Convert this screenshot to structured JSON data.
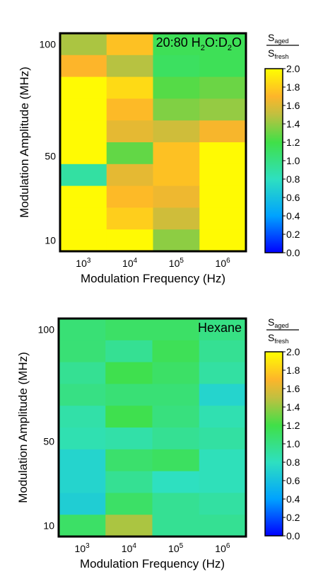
{
  "colormap": {
    "stops": [
      {
        "v": 0.0,
        "color": "#0000ff"
      },
      {
        "v": 0.4,
        "color": "#00a2ff"
      },
      {
        "v": 0.8,
        "color": "#2ee0c0"
      },
      {
        "v": 1.2,
        "color": "#40e048"
      },
      {
        "v": 1.5,
        "color": "#c0c040"
      },
      {
        "v": 1.7,
        "color": "#fdb52a"
      },
      {
        "v": 2.0,
        "color": "#ffff00"
      }
    ]
  },
  "chart_data": [
    {
      "type": "heatmap",
      "annotation": "20:80 H₂O:D₂O",
      "annotation_parts": [
        "20:80 H",
        "2",
        "O:D",
        "2",
        "O"
      ],
      "xlabel": "Modulation Frequency (Hz)",
      "ylabel": "Modulation Amplitude (MHz)",
      "x_tick_labels": [
        {
          "base": "10",
          "exp": "3"
        },
        {
          "base": "10",
          "exp": "4"
        },
        {
          "base": "10",
          "exp": "5"
        },
        {
          "base": "10",
          "exp": "6"
        }
      ],
      "y_tick_labels": [
        "100",
        "50",
        "10"
      ],
      "colorbar": {
        "label_numerator": "S",
        "label_numerator_sub": "aged",
        "label_denominator": "S",
        "label_denominator_sub": "fresh",
        "range": [
          0.0,
          2.0
        ],
        "tick_labels": [
          "2.0",
          "1.8",
          "1.6",
          "1.4",
          "1.2",
          "1.0",
          "0.8",
          "0.6",
          "0.4",
          "0.2",
          "0.0"
        ]
      },
      "rows_top_to_bottom": 10,
      "columns": 4,
      "values": [
        [
          1.45,
          1.75,
          1.15,
          1.15
        ],
        [
          1.7,
          1.48,
          1.12,
          1.15
        ],
        [
          1.98,
          1.85,
          1.25,
          1.3
        ],
        [
          1.98,
          1.72,
          1.35,
          1.4
        ],
        [
          1.98,
          1.62,
          1.55,
          1.68
        ],
        [
          1.98,
          1.28,
          1.75,
          1.98
        ],
        [
          0.9,
          1.62,
          1.75,
          1.98
        ],
        [
          1.98,
          1.72,
          1.65,
          1.98
        ],
        [
          1.98,
          1.8,
          1.55,
          1.98
        ],
        [
          1.98,
          1.98,
          1.38,
          1.98
        ]
      ]
    },
    {
      "type": "heatmap",
      "annotation": "Hexane",
      "xlabel": "Modulation Frequency (Hz)",
      "ylabel": "Modulation Amplitude (MHz)",
      "x_tick_labels": [
        {
          "base": "10",
          "exp": "3"
        },
        {
          "base": "10",
          "exp": "4"
        },
        {
          "base": "10",
          "exp": "5"
        },
        {
          "base": "10",
          "exp": "6"
        }
      ],
      "y_tick_labels": [
        "100",
        "50",
        "10"
      ],
      "colorbar": {
        "label_numerator": "S",
        "label_numerator_sub": "aged",
        "label_denominator": "S",
        "label_denominator_sub": "fresh",
        "range": [
          0.0,
          2.0
        ],
        "tick_labels": [
          "2.0",
          "1.8",
          "1.6",
          "1.4",
          "1.2",
          "1.0",
          "0.8",
          "0.6",
          "0.4",
          "0.2",
          "0.0"
        ]
      },
      "rows_top_to_bottom": 10,
      "columns": 4,
      "values": [
        [
          1.05,
          1.1,
          1.1,
          1.0
        ],
        [
          1.05,
          0.95,
          1.15,
          0.95
        ],
        [
          0.95,
          1.18,
          1.1,
          0.9
        ],
        [
          1.0,
          1.05,
          1.05,
          0.72
        ],
        [
          0.88,
          1.18,
          1.02,
          0.85
        ],
        [
          0.85,
          0.88,
          0.95,
          0.9
        ],
        [
          0.72,
          1.08,
          1.12,
          0.82
        ],
        [
          0.72,
          0.95,
          0.8,
          0.82
        ],
        [
          0.68,
          1.1,
          0.95,
          0.9
        ],
        [
          1.1,
          1.45,
          0.95,
          0.95
        ]
      ]
    }
  ]
}
